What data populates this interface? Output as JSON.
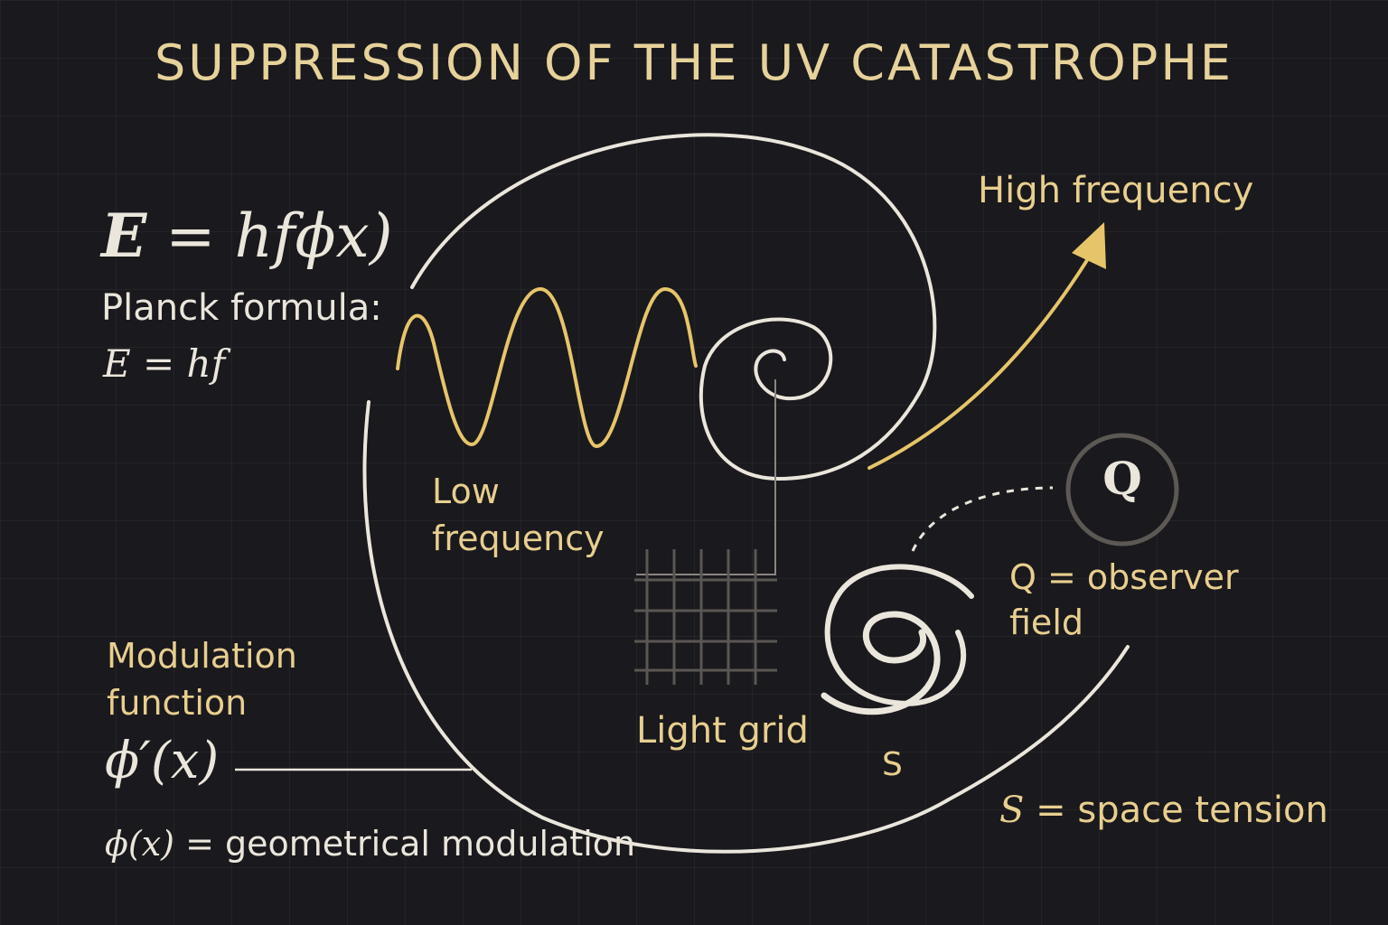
{
  "title": "SUPPRESSION OF THE UV CATASTROPHE",
  "equations": {
    "main": {
      "lhs": "E",
      "rhs": "= hfϕx)"
    },
    "planck_label": "Planck formula:",
    "planck": "E = hf",
    "modulation_symbol": "ϕ′(x)",
    "phi_symbol": "ϕ(x)",
    "phi_definition": "= geometrical modulation"
  },
  "labels": {
    "low_frequency": [
      "Low",
      "frequency"
    ],
    "high_frequency": "High frequency",
    "light_grid": "Light grid",
    "s_symbol": "S",
    "q_symbol": "Q",
    "q_observer": [
      "Q = observer",
      "field"
    ],
    "modulation_function": [
      "Modulation",
      "function"
    ],
    "s_space_tension": {
      "symbol": "S",
      "text": " = space tension"
    }
  },
  "colors": {
    "background": "#1a191d",
    "accent_gold": "#e6c56a",
    "text_gold": "#e8cf8f",
    "cream": "#ebe6dc",
    "grid": "#4a4746"
  }
}
